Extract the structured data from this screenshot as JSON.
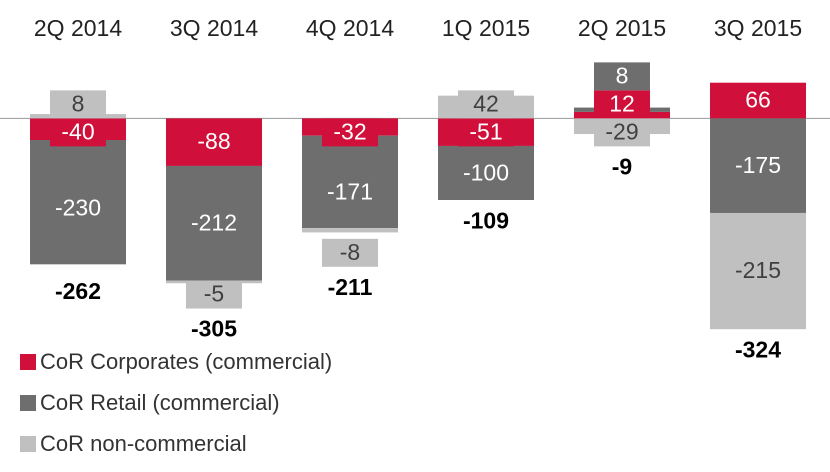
{
  "chart_data": {
    "type": "stacked_bar",
    "categories": [
      "2Q 2014",
      "3Q 2014",
      "4Q 2014",
      "1Q 2015",
      "2Q 2015",
      "3Q 2015"
    ],
    "series": [
      {
        "name": "CoR Corporates (commercial)",
        "color": "#d0103a",
        "values": [
          -40,
          -88,
          -32,
          -51,
          12,
          66
        ]
      },
      {
        "name": "CoR Retail (commercial)",
        "color": "#6e6e6e",
        "values": [
          -230,
          -212,
          -171,
          -100,
          8,
          -175
        ]
      },
      {
        "name": "CoR non-commercial",
        "color": "#c0c0c0",
        "values": [
          8,
          -5,
          -8,
          42,
          -29,
          -215
        ]
      }
    ],
    "totals": [
      -262,
      -305,
      -211,
      -109,
      -9,
      -324
    ],
    "ylim": [
      -410,
      108
    ],
    "legend": "lower left"
  }
}
